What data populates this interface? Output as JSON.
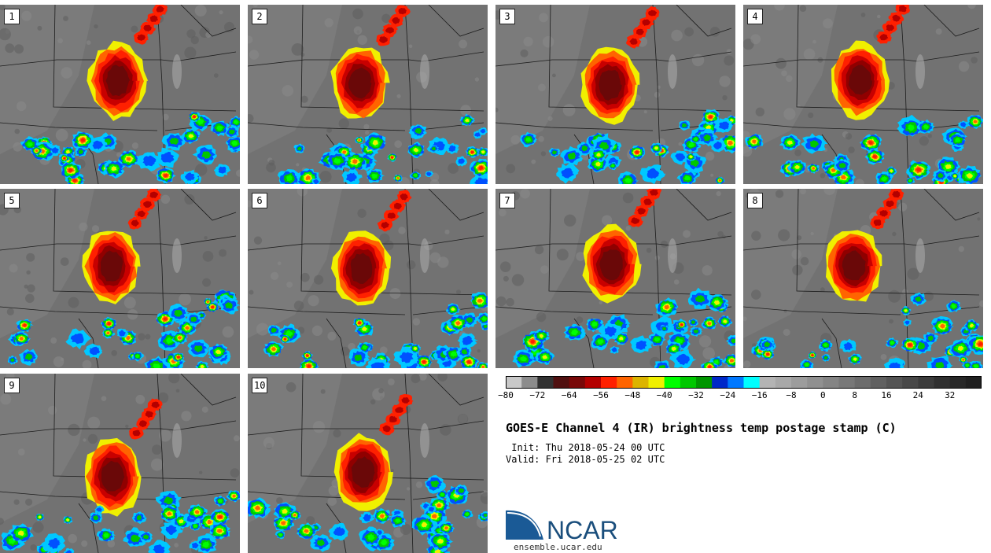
{
  "panels": [
    {
      "label": "1"
    },
    {
      "label": "2"
    },
    {
      "label": "3"
    },
    {
      "label": "4"
    },
    {
      "label": "5"
    },
    {
      "label": "6"
    },
    {
      "label": "7"
    },
    {
      "label": "8"
    },
    {
      "label": "9"
    },
    {
      "label": "10"
    }
  ],
  "colorbar": {
    "min": -80,
    "max": 40,
    "step": 4,
    "tick_labels": [
      "−80",
      "−72",
      "−64",
      "−56",
      "−48",
      "−40",
      "−32",
      "−24",
      "−16",
      "−8",
      "0",
      "8",
      "16",
      "24",
      "32"
    ],
    "tick_values": [
      -80,
      -72,
      -64,
      -56,
      -48,
      -40,
      -32,
      -24,
      -16,
      -8,
      0,
      8,
      16,
      24,
      32
    ],
    "colors": [
      "#c8c8c8",
      "#8c8c8c",
      "#323232",
      "#501010",
      "#780808",
      "#b40000",
      "#ff2000",
      "#ff6400",
      "#dcb400",
      "#f0f000",
      "#00ff00",
      "#00c800",
      "#009600",
      "#0028c8",
      "#0078ff",
      "#00ffff",
      "#b4b4b4",
      "#a8a8a8",
      "#9c9c9c",
      "#909090",
      "#848484",
      "#787878",
      "#6c6c6c",
      "#606060",
      "#545454",
      "#484848",
      "#3c3c3c",
      "#303030",
      "#282828",
      "#202020"
    ]
  },
  "title": "GOES-E Channel 4 (IR) brightness temp postage stamp (C)",
  "init_line": " Init: Thu 2018-05-24 00 UTC",
  "valid_line": "Valid: Fri 2018-05-25 02 UTC",
  "logo": {
    "text": "NCAR",
    "url": "ensemble.ucar.edu",
    "color": "#1a4e7c"
  }
}
